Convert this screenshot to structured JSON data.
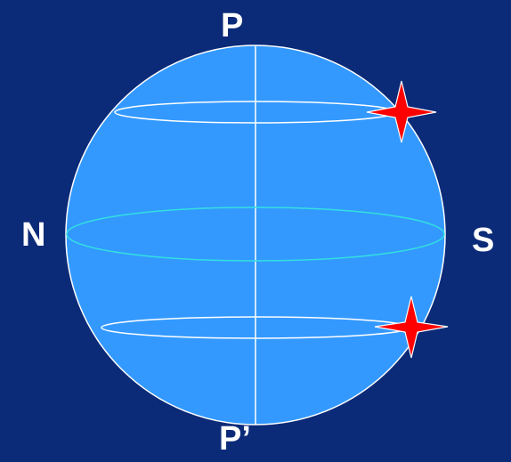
{
  "labels": {
    "top_pole": "P",
    "bottom_pole": "P’",
    "left_point": "N",
    "right_point": "S"
  },
  "colors": {
    "background": "#0b2a78",
    "sphere_fill": "#3399ff",
    "sphere_outline": "#ffffff",
    "equator": "#33e0e0",
    "parallel_lines": "#ffffff",
    "star_fill": "#ff0000",
    "star_outline": "#ffffff"
  },
  "icons": {
    "upper_marker": "red-four-point-star",
    "lower_marker": "red-four-point-star"
  }
}
